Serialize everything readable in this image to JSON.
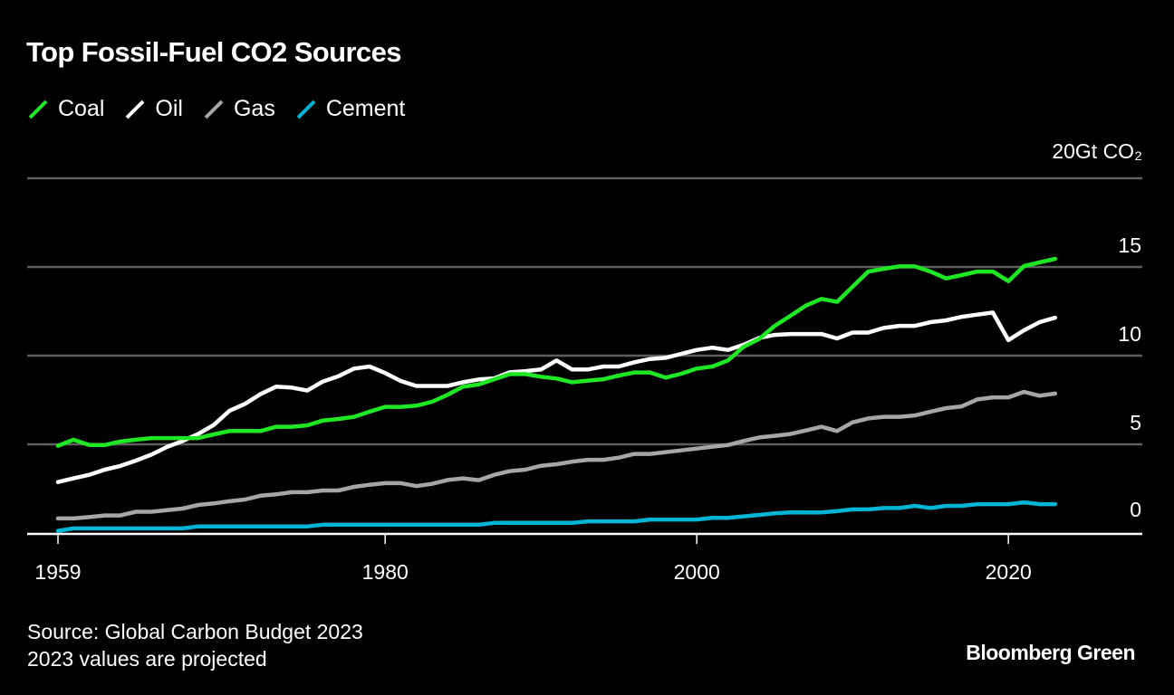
{
  "chart_data": {
    "type": "line",
    "title": "Top Fossil-Fuel CO2 Sources",
    "unit_label": "20Gt CO₂",
    "xlabel": "",
    "ylabel": "Gt CO2",
    "ylim": [
      0,
      20
    ],
    "xlim": [
      1959,
      2023
    ],
    "yticks": [
      0,
      5,
      10,
      15,
      20
    ],
    "ytick_labels": [
      "0",
      "5",
      "10",
      "15",
      "20Gt CO₂"
    ],
    "xticks": [
      1959,
      1980,
      2000,
      2020
    ],
    "xtick_labels": [
      "1959",
      "1980",
      "2000",
      "2020"
    ],
    "grid": true,
    "legend_position": "top-left",
    "x": [
      1959,
      1960,
      1961,
      1962,
      1963,
      1964,
      1965,
      1966,
      1967,
      1968,
      1969,
      1970,
      1971,
      1972,
      1973,
      1974,
      1975,
      1976,
      1977,
      1978,
      1979,
      1980,
      1981,
      1982,
      1983,
      1984,
      1985,
      1986,
      1987,
      1988,
      1989,
      1990,
      1991,
      1992,
      1993,
      1994,
      1995,
      1996,
      1997,
      1998,
      1999,
      2000,
      2001,
      2002,
      2003,
      2004,
      2005,
      2006,
      2007,
      2008,
      2009,
      2010,
      2011,
      2012,
      2013,
      2014,
      2015,
      2016,
      2017,
      2018,
      2019,
      2020,
      2021,
      2022,
      2023
    ],
    "series": [
      {
        "name": "Coal",
        "color": "#1ee824",
        "values": [
          4.92,
          5.26,
          4.96,
          4.96,
          5.16,
          5.26,
          5.35,
          5.35,
          5.35,
          5.35,
          5.56,
          5.75,
          5.75,
          5.75,
          5.99,
          5.99,
          6.07,
          6.34,
          6.43,
          6.55,
          6.84,
          7.11,
          7.11,
          7.18,
          7.4,
          7.79,
          8.25,
          8.37,
          8.67,
          8.96,
          8.96,
          8.81,
          8.71,
          8.5,
          8.59,
          8.67,
          8.88,
          9.05,
          9.05,
          8.76,
          8.98,
          9.27,
          9.39,
          9.73,
          10.5,
          10.94,
          11.68,
          12.24,
          12.82,
          13.2,
          13.03,
          13.89,
          14.74,
          14.9,
          15.03,
          15.03,
          14.74,
          14.35,
          14.54,
          14.74,
          14.74,
          14.2,
          15.05,
          15.26,
          15.46
        ]
      },
      {
        "name": "Oil",
        "color": "#ffffff",
        "values": [
          2.87,
          3.08,
          3.28,
          3.57,
          3.78,
          4.08,
          4.42,
          4.85,
          5.19,
          5.58,
          6.09,
          6.89,
          7.28,
          7.83,
          8.25,
          8.2,
          8.03,
          8.54,
          8.84,
          9.27,
          9.39,
          9.02,
          8.57,
          8.29,
          8.29,
          8.29,
          8.5,
          8.66,
          8.72,
          9.06,
          9.13,
          9.22,
          9.73,
          9.22,
          9.22,
          9.39,
          9.39,
          9.63,
          9.81,
          9.88,
          10.1,
          10.32,
          10.45,
          10.32,
          10.61,
          11.0,
          11.17,
          11.22,
          11.22,
          11.22,
          10.97,
          11.3,
          11.3,
          11.56,
          11.68,
          11.68,
          11.89,
          11.99,
          12.19,
          12.31,
          12.43,
          10.87,
          11.43,
          11.89,
          12.14
        ]
      },
      {
        "name": "Gas",
        "color": "#a6a6a6",
        "values": [
          0.82,
          0.82,
          0.9,
          0.99,
          0.99,
          1.2,
          1.2,
          1.29,
          1.38,
          1.58,
          1.67,
          1.79,
          1.89,
          2.1,
          2.18,
          2.3,
          2.3,
          2.4,
          2.4,
          2.6,
          2.72,
          2.81,
          2.81,
          2.65,
          2.77,
          2.99,
          3.08,
          2.98,
          3.28,
          3.49,
          3.57,
          3.79,
          3.88,
          4.02,
          4.13,
          4.13,
          4.25,
          4.46,
          4.46,
          4.56,
          4.66,
          4.76,
          4.86,
          4.96,
          5.19,
          5.39,
          5.48,
          5.58,
          5.78,
          5.99,
          5.75,
          6.24,
          6.46,
          6.55,
          6.55,
          6.63,
          6.84,
          7.04,
          7.14,
          7.53,
          7.65,
          7.65,
          7.96,
          7.74,
          7.86
        ]
      },
      {
        "name": "Cement",
        "color": "#00b4d4",
        "values": [
          0.12,
          0.26,
          0.26,
          0.26,
          0.26,
          0.26,
          0.26,
          0.26,
          0.26,
          0.37,
          0.37,
          0.37,
          0.37,
          0.37,
          0.37,
          0.37,
          0.37,
          0.47,
          0.47,
          0.47,
          0.47,
          0.47,
          0.47,
          0.47,
          0.47,
          0.47,
          0.47,
          0.47,
          0.57,
          0.57,
          0.57,
          0.57,
          0.57,
          0.57,
          0.66,
          0.66,
          0.66,
          0.66,
          0.76,
          0.76,
          0.76,
          0.76,
          0.85,
          0.85,
          0.94,
          1.02,
          1.11,
          1.16,
          1.16,
          1.16,
          1.24,
          1.33,
          1.33,
          1.41,
          1.41,
          1.53,
          1.41,
          1.53,
          1.53,
          1.63,
          1.63,
          1.63,
          1.73,
          1.63,
          1.63
        ]
      }
    ]
  },
  "footer": {
    "source": "Source: Global Carbon Budget 2023",
    "note": "2023 values are projected",
    "brand": "Bloomberg Green"
  }
}
